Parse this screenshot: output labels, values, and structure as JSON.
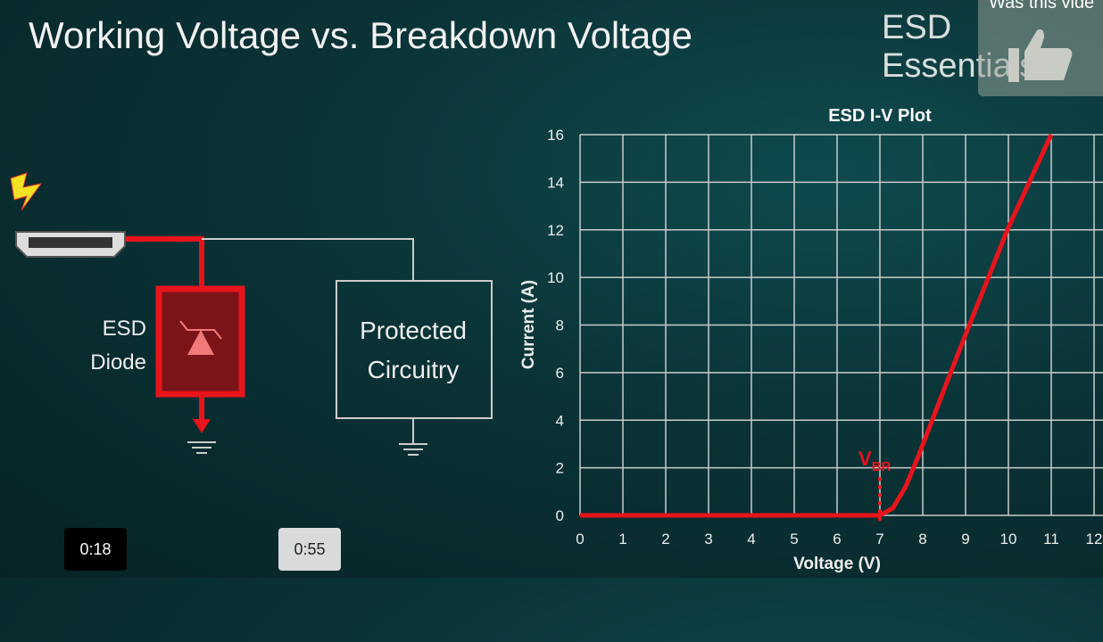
{
  "slide": {
    "title": "Working Voltage vs. Breakdown Voltage",
    "brand": "ESD Essentials"
  },
  "feedback": {
    "question": "Was this vide",
    "icon": "thumbs-up-icon"
  },
  "diagram": {
    "esd_label_1": "ESD",
    "esd_label_2": "Diode",
    "box_label_1": "Protected",
    "box_label_2": "Circuitry",
    "icons": [
      "lightning-icon",
      "hdmi-connector-icon",
      "tvs-diode-icon",
      "ground-icon"
    ]
  },
  "player": {
    "current_time": "0:18",
    "duration": "0:55"
  },
  "colors": {
    "accent": "#e8141b",
    "grid": "#c8cccc"
  },
  "chart_data": {
    "type": "line",
    "title": "ESD I-V Plot",
    "xlabel": "Voltage (V)",
    "ylabel": "Current (A)",
    "xlim": [
      0,
      12
    ],
    "ylim": [
      0,
      16
    ],
    "grid": true,
    "xticks": [
      0,
      1,
      2,
      3,
      4,
      5,
      6,
      7,
      8,
      9,
      10,
      11,
      12
    ],
    "yticks": [
      0,
      2,
      4,
      6,
      8,
      10,
      12,
      14,
      16
    ],
    "annotation": {
      "text": "V",
      "subscript": "BR",
      "x": 7
    },
    "series": [
      {
        "x": [
          0,
          7,
          7.3,
          7.6,
          7.9,
          8.5,
          9,
          10,
          11
        ],
        "y": [
          0,
          0,
          0.3,
          1.2,
          2.5,
          5.3,
          7.6,
          12.1,
          16
        ],
        "color": "#e8141b"
      }
    ]
  }
}
